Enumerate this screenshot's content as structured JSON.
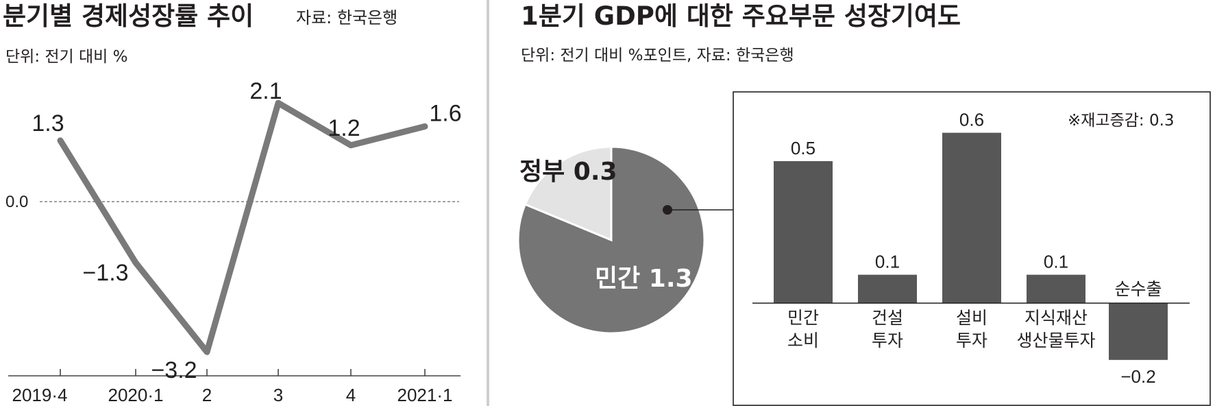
{
  "left_panel": {
    "title": "분기별 경제성장률 추이",
    "source": "자료: 한국은행",
    "unit": "단위: 전기 대비 %"
  },
  "right_panel": {
    "title": "1분기 GDP에 대한 주요부문 성장기여도",
    "unit_source": "단위: 전기 대비 %포인트, 자료: 한국은행",
    "inventory_note": "※재고증감: 0.3"
  },
  "chart_data": [
    {
      "type": "line",
      "title": "분기별 경제성장률 추이",
      "categories": [
        "2019·4",
        "2020·1",
        "2",
        "3",
        "4",
        "2021·1"
      ],
      "values": [
        1.3,
        -1.3,
        -3.2,
        2.1,
        1.2,
        1.6
      ],
      "value_labels": [
        "1.3",
        "−1.3",
        "−3.2",
        "2.1",
        "1.2",
        "1.6"
      ],
      "ylim": [
        -3.8,
        3.2
      ],
      "reference_line": {
        "value": 0.0,
        "label": "0.0"
      },
      "color": "#7a7a7a"
    },
    {
      "type": "pie",
      "slices": [
        {
          "label": "민간",
          "value": 1.3,
          "display": "민간 1.3",
          "color": "#757575"
        },
        {
          "label": "정부",
          "value": 0.3,
          "display": "정부 0.3",
          "color": "#e3e3e3"
        }
      ]
    },
    {
      "type": "bar",
      "categories": [
        [
          "민간",
          "소비"
        ],
        [
          "건설",
          "투자"
        ],
        [
          "설비",
          "투자"
        ],
        [
          "지식재산",
          "생산물투자"
        ],
        [
          "순수출"
        ]
      ],
      "values": [
        0.5,
        0.1,
        0.6,
        0.1,
        -0.2
      ],
      "value_labels": [
        "0.5",
        "0.1",
        "0.6",
        "0.1",
        "−0.2"
      ],
      "ylim": [
        -0.2,
        0.6
      ],
      "color": "#575757"
    }
  ]
}
